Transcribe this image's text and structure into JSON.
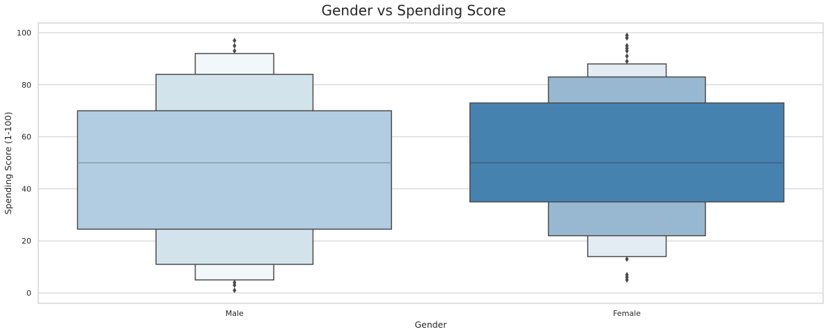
{
  "chart_data": {
    "type": "boxen",
    "title": "Gender vs Spending Score",
    "xlabel": "Gender",
    "ylabel": "Spending Score (1-100)",
    "ylim": [
      -4,
      105
    ],
    "yticks": [
      0,
      20,
      40,
      60,
      80,
      100
    ],
    "grid": true,
    "categories": [
      "Male",
      "Female"
    ],
    "series": [
      {
        "category": "Male",
        "median": 50,
        "levels": [
          {
            "low": 24.5,
            "high": 70,
            "color": "#b2cde1"
          },
          {
            "low": 11,
            "high": 84,
            "color": "#d3e3ec"
          },
          {
            "low": 5,
            "high": 92,
            "color": "#f2f7fa"
          }
        ],
        "median_color": "#7a959d",
        "outliers": [
          1,
          3,
          4,
          93,
          95,
          97
        ]
      },
      {
        "category": "Female",
        "median": 50,
        "levels": [
          {
            "low": 35,
            "high": 73,
            "color": "#4682b0"
          },
          {
            "low": 22,
            "high": 83,
            "color": "#97b8d0"
          },
          {
            "low": 14,
            "high": 88,
            "color": "#e3ebf3"
          }
        ],
        "median_color": "#3d5a70",
        "outliers": [
          5,
          6,
          7,
          13,
          89,
          91,
          93,
          94,
          95,
          98,
          99
        ]
      }
    ]
  }
}
